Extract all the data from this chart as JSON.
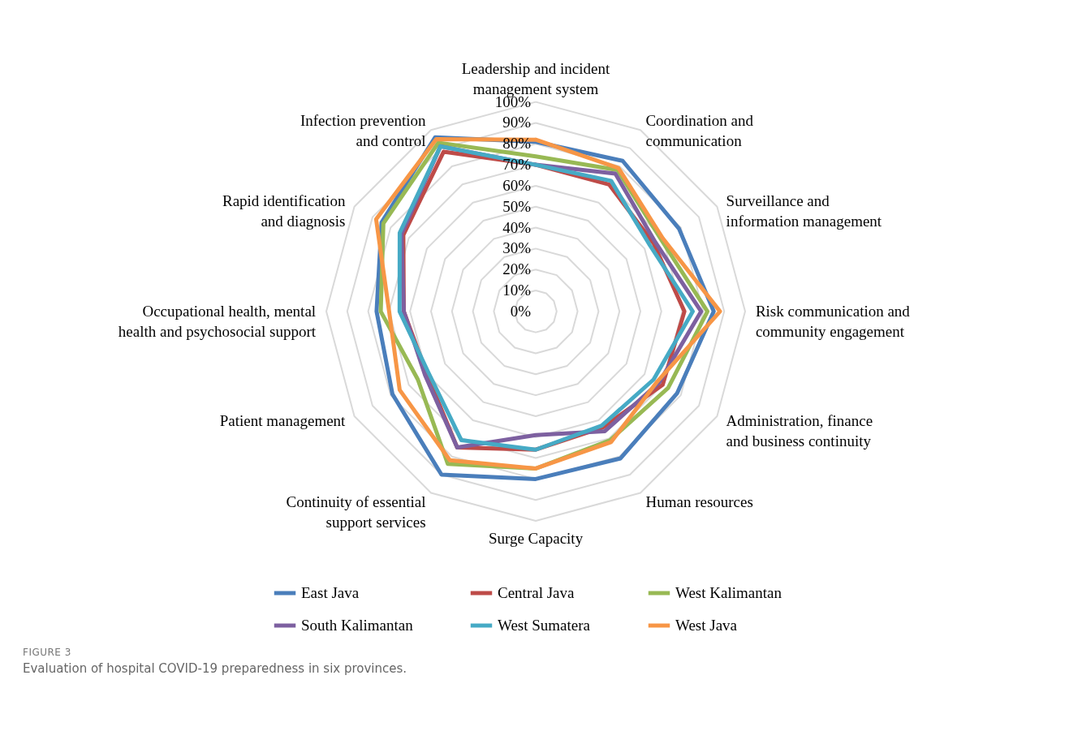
{
  "chart_data": {
    "type": "radar",
    "categories": [
      "Leadership and incident management system",
      "Coordination and communication",
      "Surveillance and information management",
      "Risk communication and community engagement",
      "Administration, finance and business continuity",
      "Human resources",
      "Surge Capacity",
      "Continuity of essential support services",
      "Patient management",
      "Occupational health, mental health and psychosocial support",
      "Rapid identification and diagnosis",
      "Infection prevention and control"
    ],
    "series": [
      {
        "name": "East Java",
        "color": "#4a7ebb",
        "values": [
          81,
          83,
          79,
          85,
          78,
          81,
          80,
          90,
          79,
          76,
          85,
          96
        ]
      },
      {
        "name": "Central Java",
        "color": "#be4b48",
        "values": [
          70,
          70,
          65,
          71,
          70,
          64,
          66,
          75,
          60,
          63,
          73,
          88
        ]
      },
      {
        "name": "West Kalimantan",
        "color": "#98b954",
        "values": [
          74,
          78,
          69,
          82,
          73,
          71,
          75,
          84,
          65,
          74,
          84,
          93
        ]
      },
      {
        "name": "South Kalimantan",
        "color": "#7d60a0",
        "values": [
          70,
          76,
          66,
          79,
          68,
          66,
          59,
          75,
          61,
          63,
          74,
          91
        ]
      },
      {
        "name": "West Sumatera",
        "color": "#46aac5",
        "values": [
          70,
          72,
          63,
          75,
          65,
          63,
          66,
          71,
          59,
          65,
          75,
          91
        ]
      },
      {
        "name": "West Java",
        "color": "#f79646",
        "values": [
          82,
          79,
          70,
          88,
          67,
          72,
          75,
          82,
          75,
          70,
          88,
          95
        ]
      }
    ],
    "ylim": [
      0,
      100
    ],
    "yticks": [
      {
        "value": 0,
        "label": "0%"
      },
      {
        "value": 10,
        "label": "10%"
      },
      {
        "value": 20,
        "label": "20%"
      },
      {
        "value": 30,
        "label": "30%"
      },
      {
        "value": 40,
        "label": "40%"
      },
      {
        "value": 50,
        "label": "50%"
      },
      {
        "value": 60,
        "label": "60%"
      },
      {
        "value": 70,
        "label": "70%"
      },
      {
        "value": 80,
        "label": "80%"
      },
      {
        "value": 90,
        "label": "90%"
      },
      {
        "value": 100,
        "label": "100%"
      }
    ],
    "grid": true,
    "legend": "bottom",
    "annotations": [
      "FIGURE 3",
      "Evaluation of hospital COVID-19 preparedness in six provinces."
    ]
  }
}
